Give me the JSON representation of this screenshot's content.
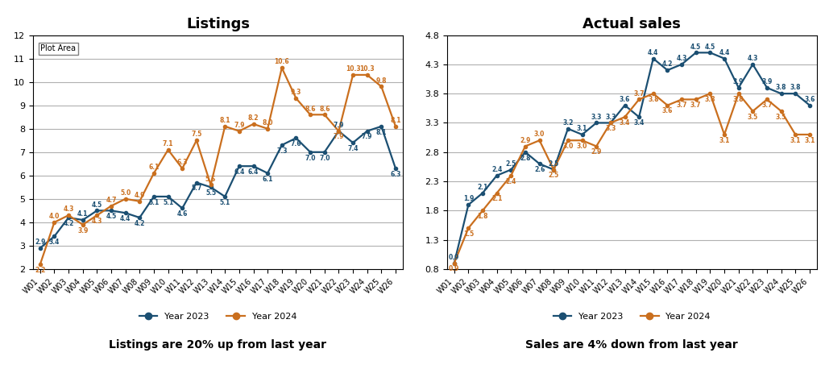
{
  "chart_data": [
    {
      "type": "line",
      "title": "Listings",
      "subtitle": "Listings are 20% up from last year",
      "categories": [
        "W01",
        "W02",
        "W03",
        "W04",
        "W05",
        "W06",
        "W07",
        "W08",
        "W09",
        "W10",
        "W11",
        "W12",
        "W13",
        "W14",
        "W15",
        "W16",
        "W17",
        "W18",
        "W19",
        "W20",
        "W21",
        "W22",
        "W23",
        "W24",
        "W25",
        "W26"
      ],
      "series": [
        {
          "name": "Year 2023",
          "color": "#1B4F72",
          "marker": "o",
          "values": [
            2.9,
            3.4,
            4.2,
            4.1,
            4.5,
            4.5,
            4.4,
            4.2,
            5.1,
            5.1,
            4.6,
            5.7,
            5.5,
            5.1,
            6.4,
            6.4,
            6.1,
            7.3,
            7.6,
            7.0,
            7.0,
            7.9,
            7.4,
            7.9,
            8.1,
            6.3
          ]
        },
        {
          "name": "Year 2024",
          "color": "#CA6F1E",
          "marker": "o",
          "values": [
            2.2,
            4.0,
            4.3,
            3.9,
            4.3,
            4.7,
            5.0,
            4.9,
            6.1,
            7.1,
            6.3,
            7.5,
            5.6,
            8.1,
            7.9,
            8.2,
            8.0,
            10.6,
            9.3,
            8.6,
            8.6,
            7.9,
            10.3,
            10.3,
            9.8,
            8.1
          ]
        }
      ],
      "ylim": [
        2,
        12
      ],
      "yticks": [
        2,
        3,
        4,
        5,
        6,
        7,
        8,
        9,
        10,
        11,
        12
      ],
      "grid": "y",
      "legend": "upper center",
      "data_labels": true,
      "annotations": [
        {
          "text": "Plot Area"
        }
      ]
    },
    {
      "type": "line",
      "title": "Actual sales",
      "subtitle": "Sales are 4% down from last year",
      "categories": [
        "W01",
        "W02",
        "W03",
        "W04",
        "W05",
        "W06",
        "W07",
        "W08",
        "W09",
        "W10",
        "W11",
        "W12",
        "W13",
        "W14",
        "W15",
        "W16",
        "W17",
        "W18",
        "W19",
        "W20",
        "W21",
        "W22",
        "W23",
        "W24",
        "W25",
        "W26"
      ],
      "series": [
        {
          "name": "Year 2023",
          "color": "#1B4F72",
          "marker": "o",
          "values": [
            0.9,
            1.9,
            2.1,
            2.4,
            2.5,
            2.8,
            2.6,
            2.5,
            3.2,
            3.1,
            3.3,
            3.3,
            3.6,
            3.4,
            4.4,
            4.2,
            4.3,
            4.5,
            4.5,
            4.4,
            3.9,
            4.3,
            3.9,
            3.8,
            3.8,
            3.6
          ]
        },
        {
          "name": "Year 2024",
          "color": "#CA6F1E",
          "marker": "o",
          "values": [
            0.9,
            1.5,
            1.8,
            2.1,
            2.4,
            2.9,
            3.0,
            2.5,
            3.0,
            3.0,
            2.9,
            3.3,
            3.4,
            3.7,
            3.8,
            3.6,
            3.7,
            3.7,
            3.8,
            3.1,
            3.8,
            3.5,
            3.7,
            3.5,
            3.1,
            3.1
          ]
        }
      ],
      "ylim": [
        0.8,
        4.8
      ],
      "yticks": [
        0.8,
        1.3,
        1.8,
        2.3,
        2.8,
        3.3,
        3.8,
        4.3,
        4.8
      ],
      "grid": "y",
      "legend": "upper center",
      "data_labels": true
    }
  ]
}
